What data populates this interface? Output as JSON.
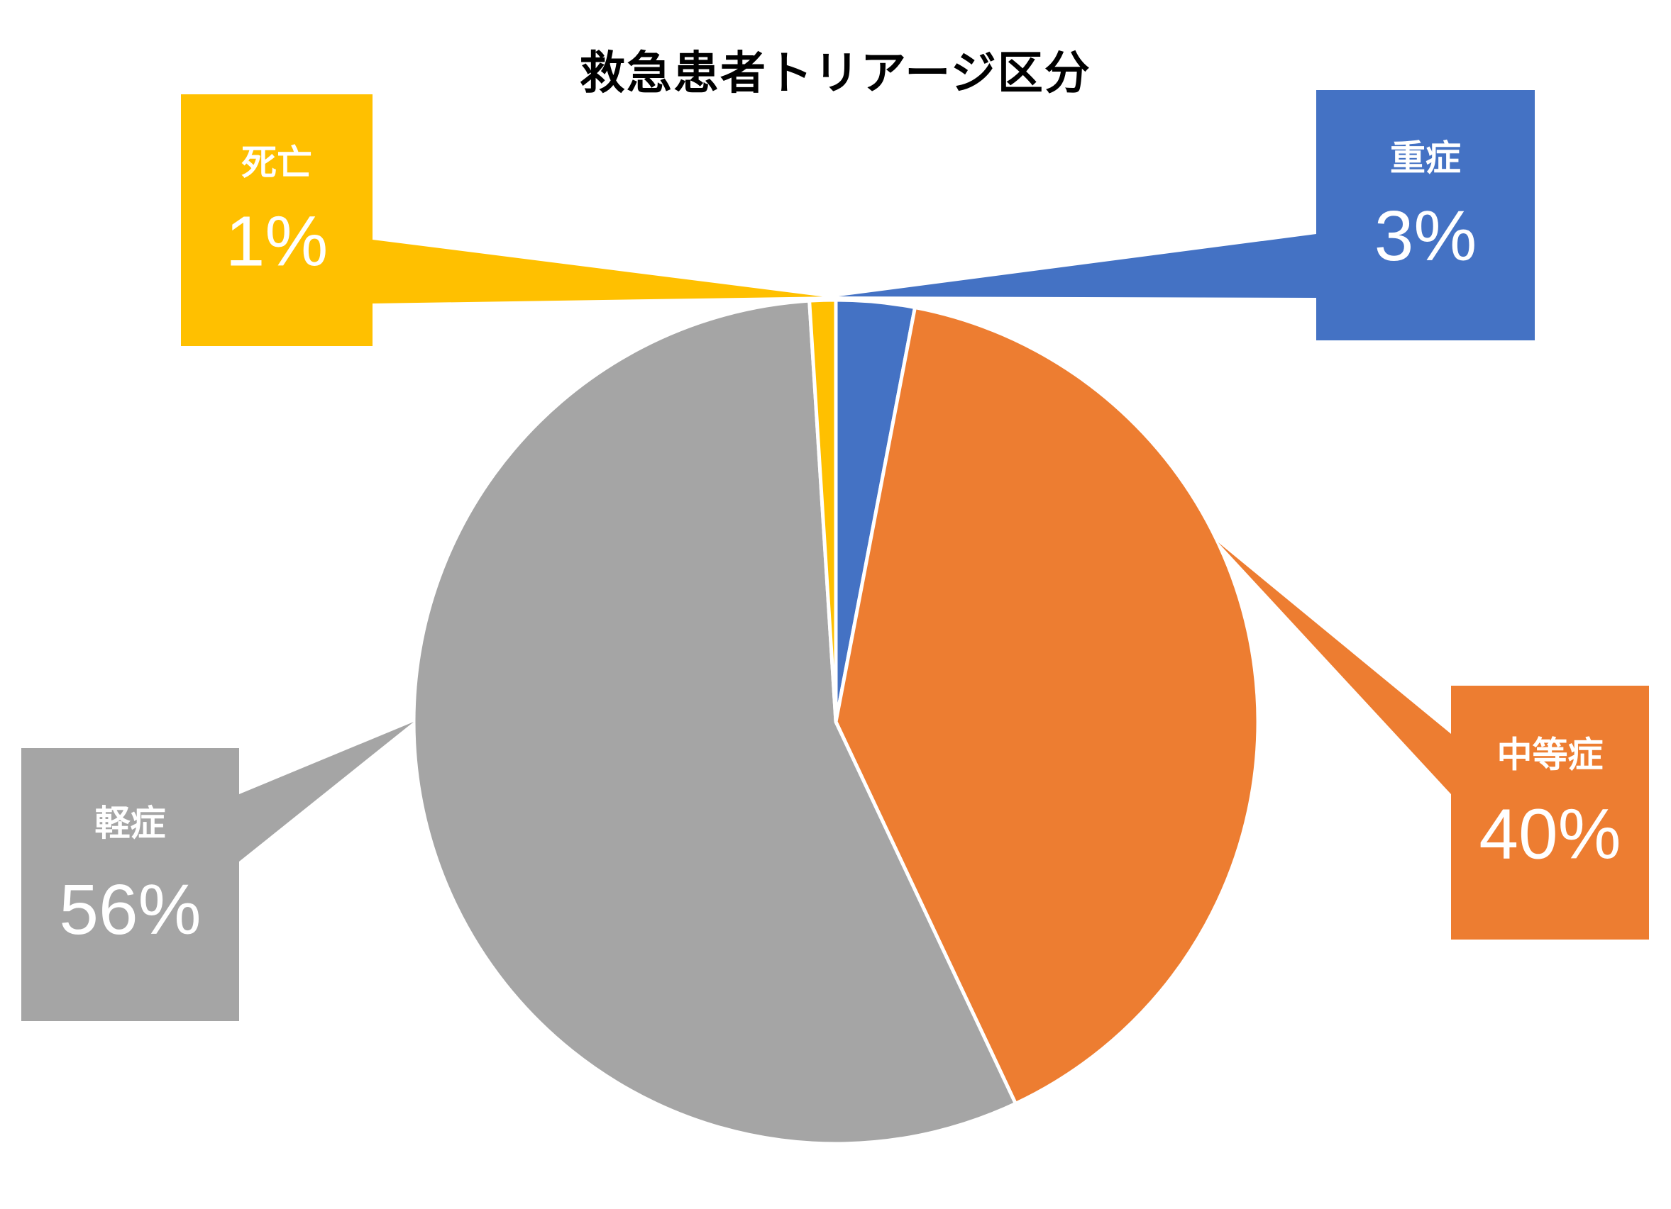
{
  "chart_data": {
    "type": "pie",
    "title": "救急患者トリアージ区分",
    "slices": [
      {
        "name": "重症",
        "value": 3,
        "pct_label": "3%",
        "color": "#4472C4"
      },
      {
        "name": "中等症",
        "value": 40,
        "pct_label": "40%",
        "color": "#ED7D31"
      },
      {
        "name": "軽症",
        "value": 56,
        "pct_label": "56%",
        "color": "#A5A5A5"
      },
      {
        "name": "死亡",
        "value": 1,
        "pct_label": "1%",
        "color": "#FFC000"
      }
    ],
    "label_text_color": "#FFFFFF",
    "label_style": "callout"
  }
}
